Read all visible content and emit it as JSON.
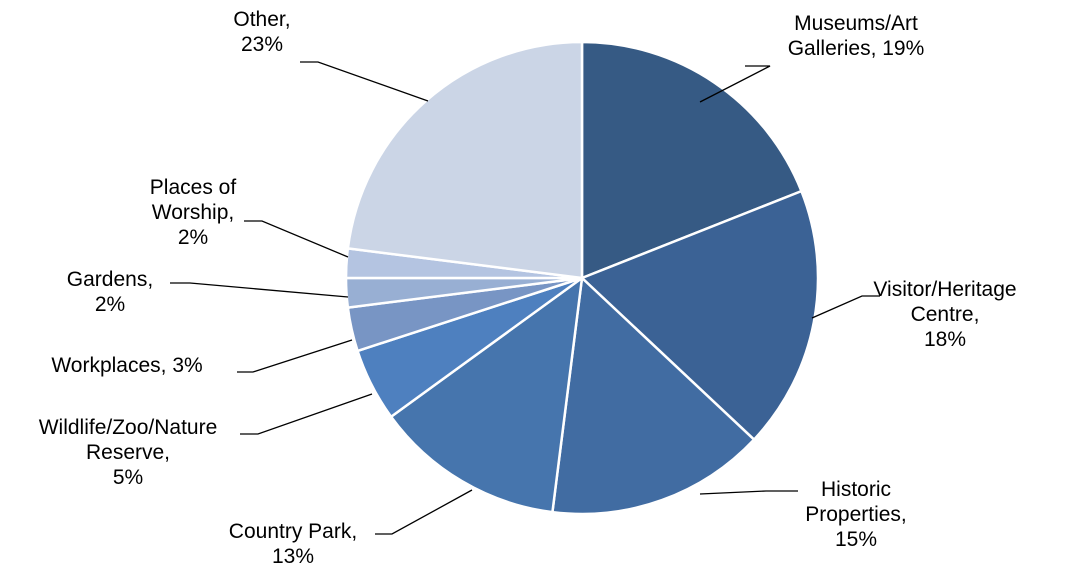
{
  "chart_data": {
    "type": "pie",
    "slices": [
      {
        "label": "Museums/Art Galleries",
        "value": 19,
        "display": "19%",
        "color": "#365a84"
      },
      {
        "label": "Visitor/Heritage Centre",
        "value": 18,
        "display": "18%",
        "color": "#3b6295"
      },
      {
        "label": "Historic Properties",
        "value": 15,
        "display": "15%",
        "color": "#416ca2"
      },
      {
        "label": "Country Park",
        "value": 13,
        "display": "13%",
        "color": "#4675ad"
      },
      {
        "label": "Wildlife/Zoo/Nature Reserve",
        "value": 5,
        "display": "5%",
        "color": "#4e80bf"
      },
      {
        "label": "Workplaces",
        "value": 3,
        "display": "3%",
        "color": "#7895c4"
      },
      {
        "label": "Gardens",
        "value": 2,
        "display": "2%",
        "color": "#98afd3"
      },
      {
        "label": "Places of Worship",
        "value": 2,
        "display": "2%",
        "color": "#b4c4e1"
      },
      {
        "label": "Other",
        "value": 23,
        "display": "23%",
        "color": "#cbd5e6"
      }
    ],
    "data_labels": [
      {
        "lines": [
          "Museums/Art",
          "Galleries, 19%"
        ]
      },
      {
        "lines": [
          "Visitor/Heritage",
          "Centre,",
          "18%"
        ]
      },
      {
        "lines": [
          "Historic",
          "Properties,",
          "15%"
        ]
      },
      {
        "lines": [
          "Country Park,",
          "13%"
        ]
      },
      {
        "lines": [
          "Wildlife/Zoo/Nature",
          "Reserve,",
          "5%"
        ]
      },
      {
        "lines": [
          "Workplaces, 3%"
        ]
      },
      {
        "lines": [
          "Gardens,",
          "2%"
        ]
      },
      {
        "lines": [
          "Places of",
          "Worship,",
          "2%"
        ]
      },
      {
        "lines": [
          "Other,",
          "23%"
        ]
      }
    ],
    "start_angle_deg": 0,
    "direction": "clockwise",
    "legend": "none"
  }
}
